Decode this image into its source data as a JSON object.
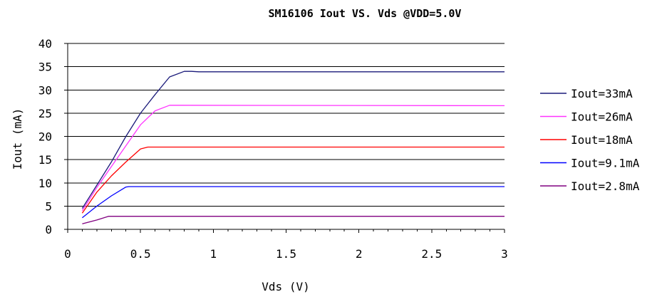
{
  "chart_data": {
    "type": "line",
    "title": "SM16106 Iout VS. Vds @VDD=5.0V",
    "xlabel": "Vds (V)",
    "ylabel": "Iout (mA)",
    "xlim": [
      0,
      3
    ],
    "ylim": [
      0,
      40
    ],
    "x_ticks": [
      "0",
      "0.5",
      "1",
      "1.5",
      "2",
      "2.5",
      "3"
    ],
    "y_ticks": [
      "0",
      "5",
      "10",
      "15",
      "20",
      "25",
      "30",
      "35",
      "40"
    ],
    "grid": "horizontal",
    "legend_position": "right",
    "series": [
      {
        "name": "Iout=33mA",
        "color": "#1a1a7a",
        "x": [
          0.1,
          0.2,
          0.3,
          0.4,
          0.5,
          0.6,
          0.7,
          0.8,
          0.85,
          0.9,
          3.0
        ],
        "y": [
          4.5,
          9.5,
          14.5,
          20.0,
          25.0,
          29.0,
          32.8,
          34.0,
          34.0,
          33.9,
          33.9
        ]
      },
      {
        "name": "Iout=26mA",
        "color": "#ff33ff",
        "x": [
          0.1,
          0.2,
          0.3,
          0.4,
          0.5,
          0.6,
          0.7,
          0.75,
          3.0
        ],
        "y": [
          4.0,
          9.0,
          13.5,
          18.0,
          22.5,
          25.5,
          26.7,
          26.7,
          26.6
        ]
      },
      {
        "name": "Iout=18mA",
        "color": "#ff0000",
        "x": [
          0.1,
          0.2,
          0.3,
          0.4,
          0.5,
          0.55,
          3.0
        ],
        "y": [
          3.5,
          8.0,
          11.5,
          14.5,
          17.3,
          17.7,
          17.7
        ]
      },
      {
        "name": "Iout=9.1mA",
        "color": "#0000ff",
        "x": [
          0.1,
          0.2,
          0.3,
          0.4,
          0.42,
          3.0
        ],
        "y": [
          2.5,
          5.0,
          7.2,
          9.1,
          9.2,
          9.2
        ]
      },
      {
        "name": "Iout=2.8mA",
        "color": "#800080",
        "x": [
          0.1,
          0.2,
          0.28,
          3.0
        ],
        "y": [
          1.2,
          2.0,
          2.8,
          2.8
        ]
      }
    ]
  }
}
